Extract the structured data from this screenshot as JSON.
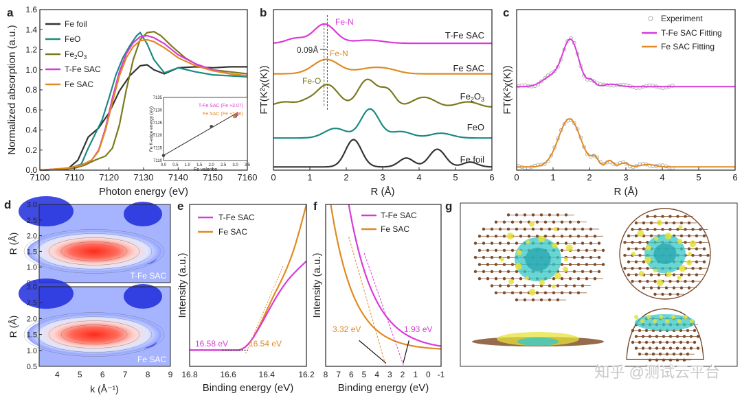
{
  "colors": {
    "black": "#333333",
    "teal": "#1a8a82",
    "olive": "#7a7a1c",
    "magenta": "#d83ad8",
    "orange": "#e08a22",
    "exp": "#aaaaaa"
  },
  "chart_data": [
    {
      "panel": "a",
      "type": "line",
      "xlabel": "Photon energy (eV)",
      "ylabel": "Normalized absorption (a.u.)",
      "xlim": [
        7100,
        7160
      ],
      "ylim": [
        0,
        1.6
      ],
      "xticks": [
        7100,
        7110,
        7120,
        7130,
        7140,
        7150,
        7160
      ],
      "yticks": [
        0.0,
        0.2,
        0.4,
        0.6,
        0.8,
        1.0,
        1.2,
        1.4,
        1.6
      ],
      "legend": [
        "Fe foil",
        "FeO",
        "Fe2O3",
        "T-Fe SAC",
        "Fe SAC"
      ],
      "series": [
        {
          "name": "Fe foil",
          "color": "black",
          "x": [
            7100,
            7108,
            7111,
            7114,
            7117,
            7120,
            7123,
            7126,
            7129,
            7131,
            7133,
            7136,
            7140,
            7145,
            7150,
            7155,
            7160
          ],
          "y": [
            0,
            0.01,
            0.1,
            0.33,
            0.42,
            0.57,
            0.79,
            0.94,
            1.04,
            1.05,
            1.0,
            0.96,
            1.02,
            1.03,
            1.02,
            1.03,
            1.03
          ]
        },
        {
          "name": "FeO",
          "color": "teal",
          "x": [
            7100,
            7108,
            7112,
            7114,
            7116,
            7118,
            7120,
            7122,
            7124,
            7126,
            7128,
            7129,
            7131,
            7133,
            7136,
            7140,
            7145,
            7150,
            7155,
            7160
          ],
          "y": [
            0,
            0.01,
            0.06,
            0.22,
            0.36,
            0.5,
            0.72,
            0.95,
            1.12,
            1.24,
            1.34,
            1.37,
            1.26,
            1.1,
            0.97,
            1.02,
            0.98,
            0.95,
            0.94,
            0.93
          ]
        },
        {
          "name": "Fe2O3",
          "color": "olive",
          "x": [
            7100,
            7110,
            7113,
            7116,
            7119,
            7121,
            7123,
            7125,
            7127,
            7129,
            7131,
            7133,
            7135,
            7138,
            7142,
            7146,
            7150,
            7155,
            7160
          ],
          "y": [
            0,
            0.02,
            0.05,
            0.1,
            0.14,
            0.22,
            0.45,
            0.8,
            1.1,
            1.3,
            1.37,
            1.38,
            1.34,
            1.24,
            1.12,
            1.04,
            1.0,
            0.98,
            0.96
          ]
        },
        {
          "name": "T-Fe SAC",
          "color": "magenta",
          "x": [
            7100,
            7108,
            7112,
            7115,
            7117,
            7119,
            7121,
            7123,
            7125,
            7127,
            7129,
            7131,
            7133,
            7136,
            7140,
            7145,
            7150,
            7155,
            7160
          ],
          "y": [
            0,
            0.02,
            0.05,
            0.1,
            0.2,
            0.42,
            0.72,
            0.98,
            1.16,
            1.27,
            1.33,
            1.34,
            1.32,
            1.26,
            1.15,
            1.06,
            1.0,
            0.96,
            0.94
          ]
        },
        {
          "name": "Fe SAC",
          "color": "orange",
          "x": [
            7100,
            7108,
            7112,
            7115,
            7117,
            7119,
            7121,
            7123,
            7125,
            7127,
            7129,
            7131,
            7133,
            7136,
            7140,
            7145,
            7150,
            7155,
            7160
          ],
          "y": [
            0,
            0.02,
            0.05,
            0.1,
            0.19,
            0.4,
            0.68,
            0.94,
            1.12,
            1.23,
            1.29,
            1.3,
            1.28,
            1.22,
            1.12,
            1.04,
            0.99,
            0.96,
            0.94
          ]
        }
      ],
      "inset": {
        "xlabel": "Fe valence",
        "ylabel": "Fe K-edge energy (eV)",
        "xlim": [
          0,
          3.5
        ],
        "ylim": [
          7110,
          7135
        ],
        "xticks": [
          "0.0",
          "0.5",
          "1.0",
          "1.5",
          "2.0",
          "2.5",
          "3.0",
          "3.5"
        ],
        "yticks": [
          "7110",
          "7115",
          "7120",
          "7125",
          "7130",
          "7135"
        ],
        "points": [
          {
            "x": 0,
            "y": 7112
          },
          {
            "x": 2,
            "y": 7123.5
          },
          {
            "x": 3,
            "y": 7127.5
          }
        ],
        "fit": {
          "x": [
            0,
            3.1
          ],
          "y": [
            7112,
            7129
          ]
        },
        "labels": [
          "T-Fe SAC (Fe +3.07)",
          "Fe SAC (Fe +2.96)"
        ]
      }
    },
    {
      "panel": "b",
      "type": "line",
      "xlabel": "R (Å)",
      "ylabel": "FT(K²χ(K))",
      "xlim": [
        0,
        6
      ],
      "xticks": [
        0,
        1,
        2,
        3,
        4,
        5,
        6
      ],
      "labels": [
        "T-Fe SAC",
        "Fe SAC",
        "Fe2O3",
        "FeO",
        "Fe foil"
      ],
      "annotations": [
        "Fe-N",
        "Fe-N",
        "Fe-O",
        "0.09Å"
      ]
    },
    {
      "panel": "c",
      "type": "line",
      "xlabel": "R (Å)",
      "ylabel": "FT(K²χ(K))",
      "xlim": [
        0,
        6
      ],
      "xticks": [
        0,
        1,
        2,
        3,
        4,
        5,
        6
      ],
      "legend": [
        "Experiment",
        "T-Fe SAC Fitting",
        "Fe SAC Fitting"
      ]
    },
    {
      "panel": "d",
      "type": "heatmap",
      "xlabel": "k (Å⁻¹)",
      "ylabel": "R (Å)",
      "xticks": [
        4,
        5,
        6,
        7,
        8,
        9
      ],
      "yticks": [
        "0.5",
        "1.0",
        "1.5",
        "2.0",
        "2.5",
        "3.0"
      ],
      "labels": [
        "T-Fe SAC",
        "Fe SAC"
      ]
    },
    {
      "panel": "e",
      "type": "line",
      "xlabel": "Binding energy (eV)",
      "ylabel": "Intensity (a.u.)",
      "xticks": [
        "16.8",
        "16.6",
        "16.4",
        "16.2"
      ],
      "legend": [
        "T-Fe SAC",
        "Fe SAC"
      ],
      "annotations": [
        "16.58 eV",
        "16.54 eV"
      ]
    },
    {
      "panel": "f",
      "type": "line",
      "xlabel": "Binding energy (eV)",
      "ylabel": "Intensity (a.u.)",
      "xticks": [
        "8",
        "7",
        "6",
        "5",
        "4",
        "3",
        "2",
        "1",
        "0",
        "-1"
      ],
      "legend": [
        "T-Fe SAC",
        "Fe SAC"
      ],
      "annotations": [
        "3.32 eV",
        "1.93 eV"
      ]
    },
    {
      "panel": "g",
      "type": "image",
      "watermark": "知乎 @测试云平台"
    }
  ]
}
